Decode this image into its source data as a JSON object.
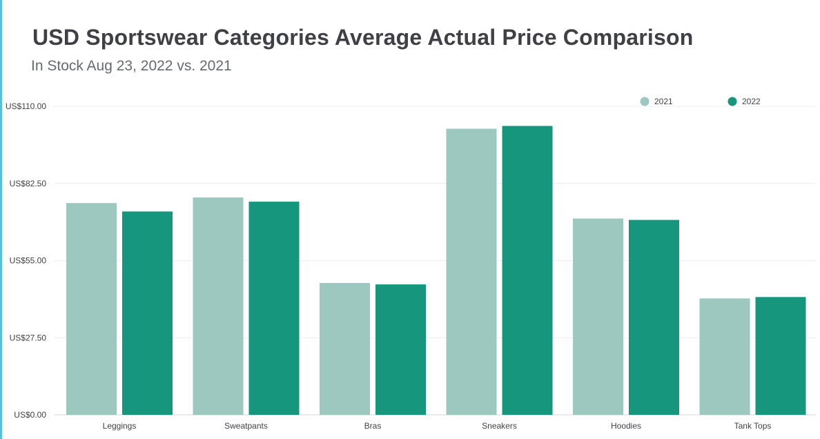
{
  "chart_data": {
    "type": "bar",
    "title": "USD Sportswear Categories Average Actual Price Comparison",
    "subtitle": "In Stock Aug 23, 2022 vs. 2021",
    "xlabel": "",
    "ylabel": "",
    "categories": [
      "Leggings",
      "Sweatpants",
      "Bras",
      "Sneakers",
      "Hoodies",
      "Tank Tops"
    ],
    "series": [
      {
        "name": "2021",
        "color": "#9cc8c0",
        "values": [
          75.5,
          77.5,
          47.0,
          102.0,
          70.0,
          41.5
        ]
      },
      {
        "name": "2022",
        "color": "#17967e",
        "values": [
          72.5,
          76.0,
          46.5,
          103.0,
          69.5,
          42.0
        ]
      }
    ],
    "ylim": [
      0,
      110
    ],
    "yticks": [
      0,
      27.5,
      55,
      82.5,
      110
    ],
    "ytick_labels": [
      "US$0.00",
      "US$27.50",
      "US$55.00",
      "US$82.50",
      "US$110.00"
    ],
    "grid": true,
    "legend_position": "top-right"
  }
}
